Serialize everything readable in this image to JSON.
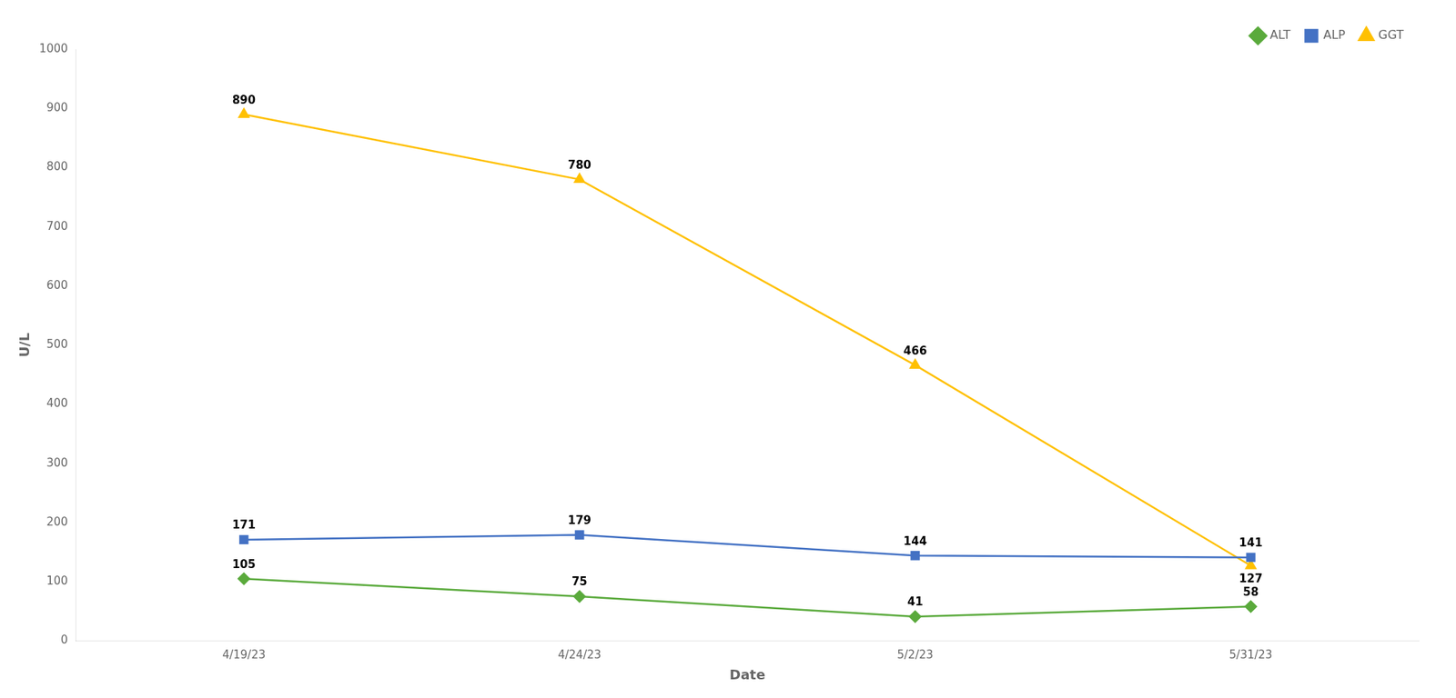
{
  "chart_data": {
    "type": "line",
    "categories": [
      "4/19/23",
      "4/24/23",
      "5/2/23",
      "5/31/23"
    ],
    "series": [
      {
        "name": "ALT",
        "color": "#5aaa3c",
        "marker": "diamond",
        "values": [
          105,
          75,
          41,
          58
        ]
      },
      {
        "name": "ALP",
        "color": "#4472c4",
        "marker": "square",
        "values": [
          171,
          179,
          144,
          141
        ]
      },
      {
        "name": "GGT",
        "color": "#ffc000",
        "marker": "triangle",
        "values": [
          890,
          780,
          466,
          127
        ]
      }
    ],
    "xlabel": "Date",
    "ylabel": "U/L",
    "ylim": [
      0,
      1000
    ],
    "yticks": [
      0,
      100,
      200,
      300,
      400,
      500,
      600,
      700,
      800,
      900,
      1000
    ],
    "grid": false,
    "legend": "upper right",
    "data_labels": true
  }
}
